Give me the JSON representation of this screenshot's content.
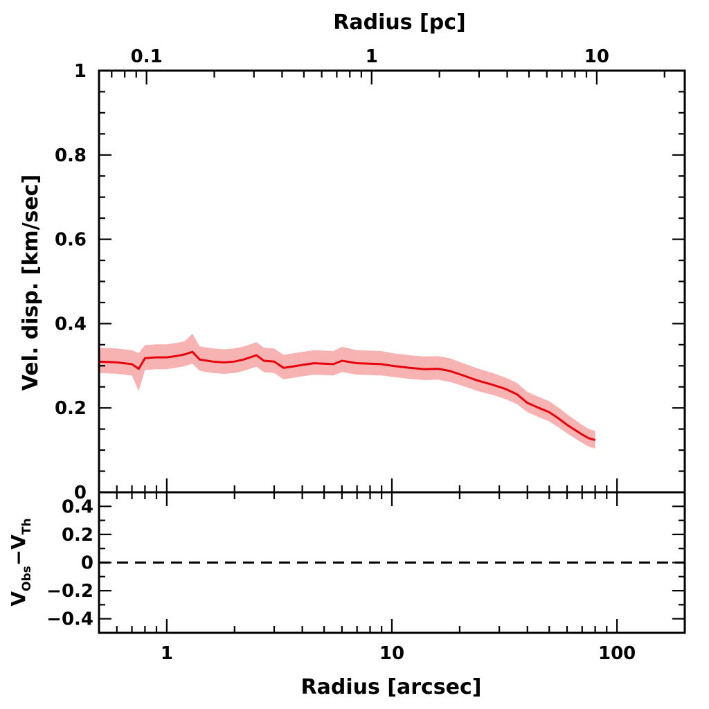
{
  "chart_data": {
    "type": "line",
    "panels": [
      {
        "id": "main",
        "ylabel": "Vel. disp. [km/sec]",
        "ylim": [
          0,
          1
        ],
        "yticks": [
          0,
          0.2,
          0.4,
          0.6,
          0.8,
          1
        ],
        "ytick_labels": [
          "0",
          "0.2",
          "0.4",
          "0.6",
          "0.8",
          "1"
        ],
        "series": [
          {
            "color": "#e8000b",
            "band_color": "#f7b2b2",
            "x": [
              0.5,
              0.6,
              0.7,
              0.75,
              0.8,
              0.9,
              1.0,
              1.1,
              1.2,
              1.3,
              1.4,
              1.6,
              1.8,
              2.0,
              2.2,
              2.5,
              2.7,
              3.0,
              3.3,
              3.6,
              4.0,
              4.5,
              5.0,
              5.5,
              6.0,
              7.0,
              8.0,
              9.0,
              10,
              12,
              14,
              16,
              18,
              20,
              24,
              28,
              32,
              36,
              40,
              45,
              50,
              55,
              60,
              65,
              70,
              75,
              80
            ],
            "y": [
              0.31,
              0.308,
              0.304,
              0.293,
              0.318,
              0.32,
              0.32,
              0.323,
              0.327,
              0.333,
              0.315,
              0.31,
              0.308,
              0.31,
              0.315,
              0.325,
              0.312,
              0.31,
              0.295,
              0.298,
              0.302,
              0.306,
              0.305,
              0.304,
              0.312,
              0.306,
              0.305,
              0.304,
              0.3,
              0.295,
              0.292,
              0.293,
              0.288,
              0.28,
              0.265,
              0.255,
              0.245,
              0.232,
              0.212,
              0.2,
              0.19,
              0.175,
              0.16,
              0.148,
              0.137,
              0.128,
              0.124
            ],
            "y_lower": [
              0.283,
              0.281,
              0.277,
              0.24,
              0.29,
              0.292,
              0.292,
              0.295,
              0.299,
              0.305,
              0.288,
              0.283,
              0.281,
              0.283,
              0.288,
              0.298,
              0.285,
              0.283,
              0.268,
              0.271,
              0.275,
              0.279,
              0.278,
              0.277,
              0.285,
              0.279,
              0.278,
              0.277,
              0.274,
              0.269,
              0.266,
              0.267,
              0.262,
              0.255,
              0.24,
              0.231,
              0.221,
              0.209,
              0.19,
              0.178,
              0.168,
              0.154,
              0.14,
              0.128,
              0.117,
              0.108,
              0.104
            ],
            "y_upper": [
              0.343,
              0.341,
              0.337,
              0.33,
              0.349,
              0.351,
              0.351,
              0.354,
              0.358,
              0.376,
              0.346,
              0.341,
              0.339,
              0.341,
              0.346,
              0.356,
              0.343,
              0.341,
              0.326,
              0.329,
              0.333,
              0.337,
              0.336,
              0.335,
              0.345,
              0.337,
              0.336,
              0.335,
              0.33,
              0.325,
              0.322,
              0.323,
              0.318,
              0.309,
              0.294,
              0.283,
              0.272,
              0.259,
              0.238,
              0.226,
              0.216,
              0.201,
              0.185,
              0.172,
              0.16,
              0.15,
              0.146
            ]
          }
        ]
      },
      {
        "id": "residual",
        "ylabel_main": "V",
        "ylabel_sub1": "Obs",
        "ylabel_dash": "−V",
        "ylabel_sub2": "Th",
        "ylim": [
          -0.5,
          0.5
        ],
        "yticks": [
          -0.4,
          -0.2,
          0,
          0.2,
          0.4
        ],
        "ytick_labels": [
          "−0.4",
          "−0.2",
          "0",
          "0.2",
          "0.4"
        ],
        "zero_line": 0,
        "zero_line_style": "dashed"
      }
    ],
    "xlabel": "Radius [arcsec]",
    "xscale": "log",
    "xlim": [
      0.5,
      200
    ],
    "xticks": [
      1,
      10,
      100
    ],
    "xtick_labels": [
      "1",
      "10",
      "100"
    ],
    "top_xlabel": "Radius [pc]",
    "top_xscale": "log",
    "top_xlim": [
      0.0615,
      24.6
    ],
    "top_xticks": [
      0.1,
      1,
      10
    ],
    "top_xtick_labels": [
      "0.1",
      "1",
      "10"
    ],
    "legend": "none",
    "grid": false
  }
}
